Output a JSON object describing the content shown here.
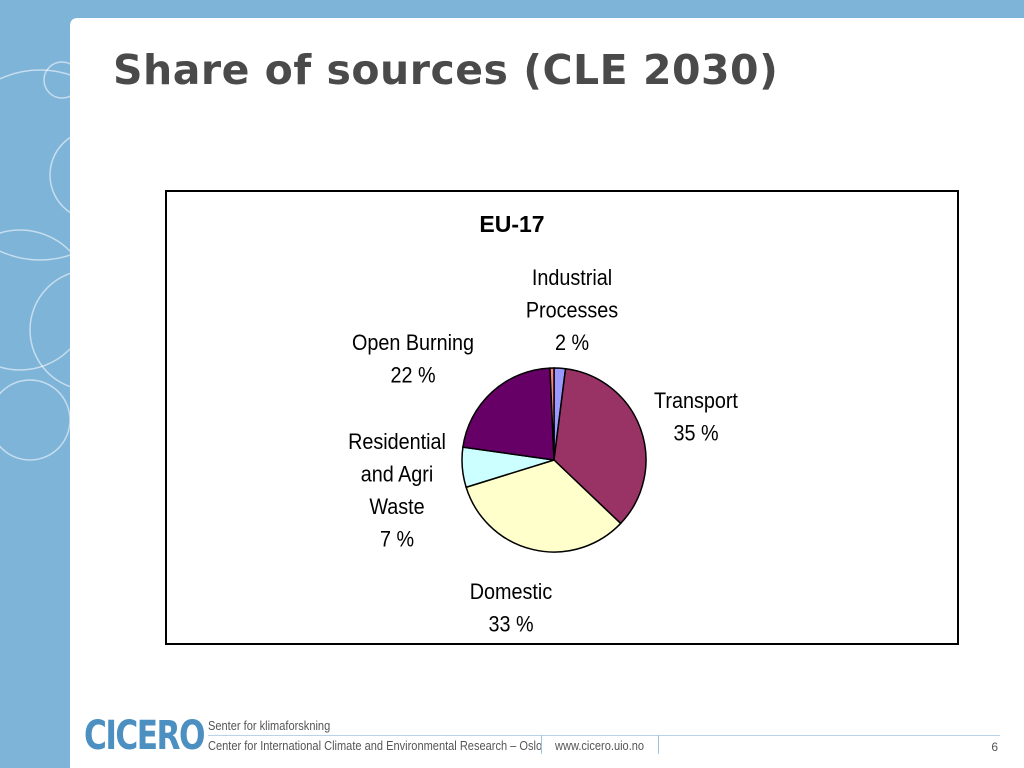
{
  "slide": {
    "title": "Share of sources (CLE 2030)",
    "page_number": "6"
  },
  "footer": {
    "logo_text": "CICERO",
    "line1": "Senter for klimaforskning",
    "line2": "Center for International Climate and Environmental Research – Oslo",
    "url": "www.cicero.uio.no"
  },
  "colors": {
    "background_frame": "#7fb4d9",
    "title_text": "#4a4a4a",
    "logo": "#4c90c2"
  },
  "chart_data": {
    "type": "pie",
    "title": "EU-17",
    "slices": [
      {
        "label": [
          "Industrial",
          "Processes",
          "2 %"
        ],
        "value": 2,
        "color": "#9999ff"
      },
      {
        "label": [
          "Transport",
          "35 %"
        ],
        "value": 35,
        "color": "#993366"
      },
      {
        "label": [
          "Domestic",
          "33 %"
        ],
        "value": 33,
        "color": "#ffffcc"
      },
      {
        "label": [
          "Residential",
          "and Agri",
          "Waste",
          "7 %"
        ],
        "value": 7,
        "color": "#ccffff"
      },
      {
        "label": [
          "Open Burning",
          "22 %"
        ],
        "value": 22,
        "color": "#660066"
      },
      {
        "label": [],
        "value": 0.7,
        "color": "#ff8080"
      }
    ]
  }
}
